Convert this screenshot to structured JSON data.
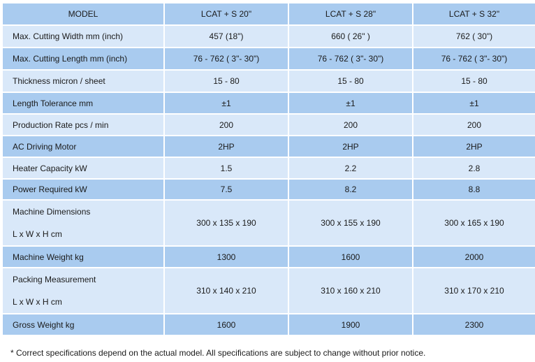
{
  "header": [
    "MODEL",
    "LCAT + S 20\"",
    "LCAT + S 28\"",
    "LCAT + S 32\""
  ],
  "rows": [
    {
      "label": "Max. Cutting Width mm (inch)",
      "values": [
        "457 (18\")",
        "660 ( 26\" )",
        "762 ( 30\")"
      ]
    },
    {
      "label": "Max. Cutting Length mm (inch)",
      "values": [
        "76 - 762 ( 3\"- 30\")",
        "76 - 762 ( 3\"- 30\")",
        "76 - 762 ( 3\"- 30\")"
      ]
    },
    {
      "label": "Thickness micron / sheet",
      "values": [
        "15 - 80",
        "15 - 80",
        "15 - 80"
      ]
    },
    {
      "label": "Length Tolerance mm",
      "values": [
        "±1",
        "±1",
        "±1"
      ]
    },
    {
      "label": "Production Rate pcs / min",
      "values": [
        "200",
        "200",
        "200"
      ]
    },
    {
      "label": "AC Driving Motor",
      "values": [
        "2HP",
        "2HP",
        "2HP"
      ]
    },
    {
      "label": "Heater Capacity kW",
      "values": [
        "1.5",
        "2.2",
        "2.8"
      ]
    },
    {
      "label": "Power Required kW",
      "values": [
        "7.5",
        "8.2",
        "8.8"
      ]
    },
    {
      "label": "Machine Dimensions",
      "label2": "L x W x H cm",
      "values": [
        "300 x 135 x 190",
        "300 x 155 x 190",
        "300 x 165 x 190"
      ]
    },
    {
      "label": "Machine Weight kg",
      "values": [
        "1300",
        "1600",
        "2000"
      ]
    },
    {
      "label": "Packing Measurement",
      "label2": "L x W x H cm",
      "values": [
        "310 x 140 x 210",
        "310 x 160 x 210",
        "310 x 170 x 210"
      ]
    },
    {
      "label": "Gross Weight kg",
      "values": [
        "1600",
        "1900",
        "2300"
      ]
    }
  ],
  "footnote": "* Correct specifications depend on the actual model. All specifications are subject to change without prior notice.",
  "colors": {
    "dark_row": "#a9cbef",
    "light_row": "#d9e8f9"
  }
}
